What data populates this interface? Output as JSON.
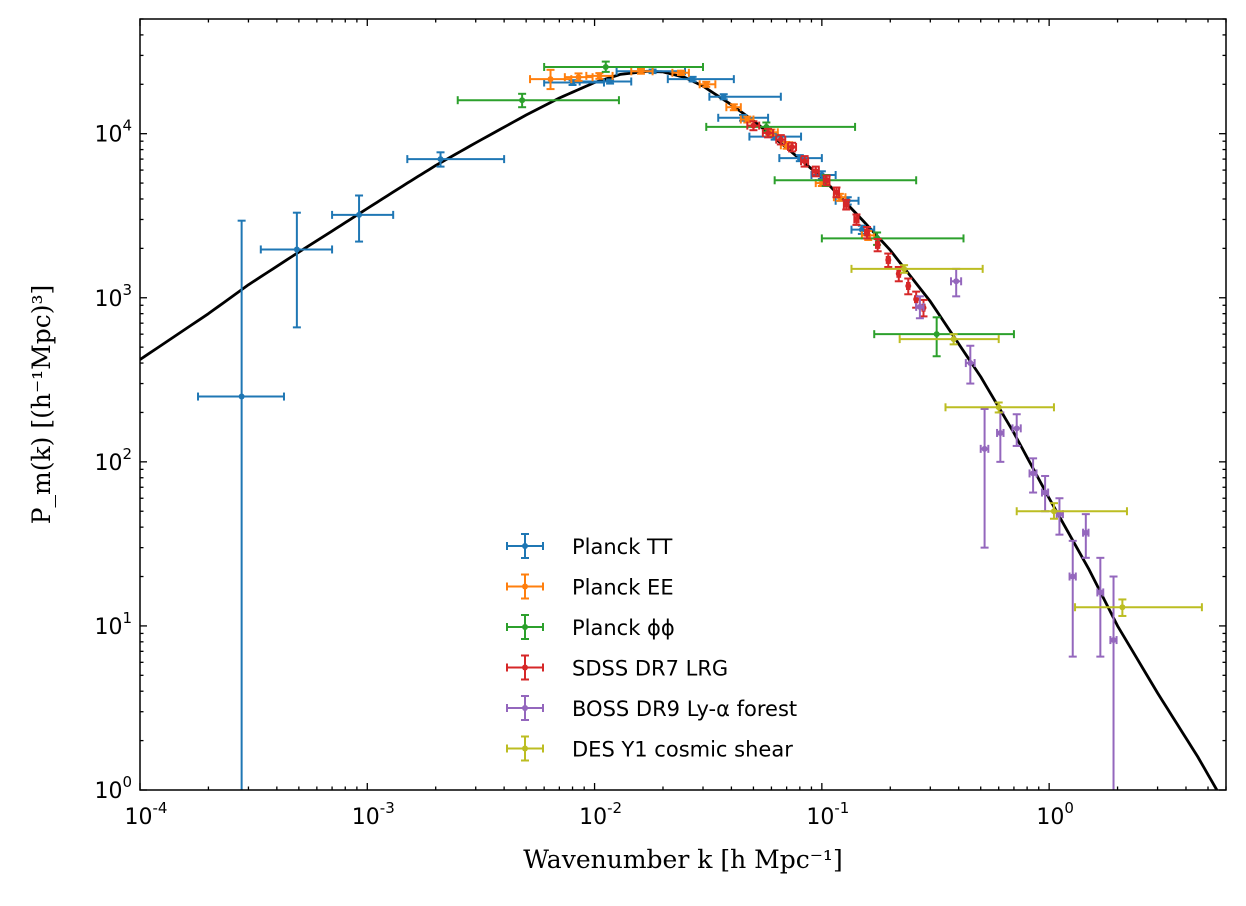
{
  "chart_data": {
    "type": "scatter",
    "title": "",
    "xlabel": "Wavenumber k [h Mpc⁻¹]",
    "ylabel": "P_m(k) [(h⁻¹Mpc)³]",
    "xscale": "log",
    "yscale": "log",
    "xlim": [
      0.0001,
      6.0
    ],
    "ylim": [
      1,
      50000
    ],
    "x_ticks": [
      {
        "value": 0.0001,
        "base": "10",
        "exp": "-4"
      },
      {
        "value": 0.001,
        "base": "10",
        "exp": "-3"
      },
      {
        "value": 0.01,
        "base": "10",
        "exp": "-2"
      },
      {
        "value": 0.1,
        "base": "10",
        "exp": "-1"
      },
      {
        "value": 1,
        "base": "10",
        "exp": "0"
      }
    ],
    "y_ticks": [
      {
        "value": 1,
        "base": "10",
        "exp": "0"
      },
      {
        "value": 10,
        "base": "10",
        "exp": "1"
      },
      {
        "value": 100,
        "base": "10",
        "exp": "2"
      },
      {
        "value": 1000,
        "base": "10",
        "exp": "3"
      },
      {
        "value": 10000,
        "base": "10",
        "exp": "4"
      }
    ],
    "grid": false,
    "legend_position": "bottom-center",
    "model_curve": {
      "color": "#000000",
      "points": [
        [
          0.0001,
          420
        ],
        [
          0.0002,
          800
        ],
        [
          0.0003,
          1200
        ],
        [
          0.0005,
          1900
        ],
        [
          0.0007,
          2550
        ],
        [
          0.001,
          3500
        ],
        [
          0.0015,
          5000
        ],
        [
          0.002,
          6400
        ],
        [
          0.003,
          8800
        ],
        [
          0.005,
          13000
        ],
        [
          0.007,
          16500
        ],
        [
          0.01,
          20500
        ],
        [
          0.013,
          23000
        ],
        [
          0.017,
          24000
        ],
        [
          0.02,
          23800
        ],
        [
          0.025,
          22000
        ],
        [
          0.03,
          19500
        ],
        [
          0.04,
          15000
        ],
        [
          0.05,
          12000
        ],
        [
          0.07,
          8200
        ],
        [
          0.1,
          5400
        ],
        [
          0.15,
          3000
        ],
        [
          0.2,
          1950
        ],
        [
          0.3,
          950
        ],
        [
          0.5,
          330
        ],
        [
          0.7,
          150
        ],
        [
          1.0,
          60
        ],
        [
          1.5,
          22
        ],
        [
          2.0,
          10
        ],
        [
          3.0,
          3.9
        ],
        [
          4.5,
          1.6
        ],
        [
          6.0,
          0.8
        ]
      ]
    },
    "series": [
      {
        "name": "Planck TT",
        "color": "#1f77b4",
        "points": [
          {
            "x": 0.00028,
            "y": 250,
            "xlo": 0.00018,
            "xhi": 0.00043,
            "ylo": 0.5,
            "yhi": 2950
          },
          {
            "x": 0.00049,
            "y": 1970,
            "xlo": 0.00034,
            "xhi": 0.0007,
            "ylo": 660,
            "yhi": 3300
          },
          {
            "x": 0.00092,
            "y": 3200,
            "xlo": 0.0007,
            "xhi": 0.0013,
            "ylo": 2200,
            "yhi": 4200
          },
          {
            "x": 0.0021,
            "y": 7000,
            "xlo": 0.0015,
            "xhi": 0.004,
            "ylo": 6300,
            "yhi": 7700
          },
          {
            "x": 0.008,
            "y": 20500,
            "xlo": 0.006,
            "xhi": 0.011,
            "ylo": 19800,
            "yhi": 21200
          },
          {
            "x": 0.0117,
            "y": 20800,
            "xlo": 0.0086,
            "xhi": 0.0145,
            "ylo": 20200,
            "yhi": 21400
          },
          {
            "x": 0.018,
            "y": 24000,
            "xlo": 0.0125,
            "xhi": 0.025,
            "ylo": 23400,
            "yhi": 24600
          },
          {
            "x": 0.027,
            "y": 21500,
            "xlo": 0.021,
            "xhi": 0.041,
            "ylo": 20800,
            "yhi": 22200
          },
          {
            "x": 0.037,
            "y": 16800,
            "xlo": 0.032,
            "xhi": 0.066,
            "ylo": 16200,
            "yhi": 17400
          },
          {
            "x": 0.045,
            "y": 12500,
            "xlo": 0.035,
            "xhi": 0.058,
            "ylo": 12000,
            "yhi": 13000
          },
          {
            "x": 0.062,
            "y": 9600,
            "xlo": 0.048,
            "xhi": 0.081,
            "ylo": 9200,
            "yhi": 10000
          },
          {
            "x": 0.08,
            "y": 7100,
            "xlo": 0.065,
            "xhi": 0.1,
            "ylo": 6800,
            "yhi": 7400
          },
          {
            "x": 0.1,
            "y": 5600,
            "xlo": 0.09,
            "xhi": 0.115,
            "ylo": 5300,
            "yhi": 5900
          },
          {
            "x": 0.13,
            "y": 3900,
            "xlo": 0.115,
            "xhi": 0.145,
            "ylo": 3700,
            "yhi": 4100
          },
          {
            "x": 0.15,
            "y": 2600,
            "xlo": 0.135,
            "xhi": 0.17,
            "ylo": 2450,
            "yhi": 2750
          }
        ]
      },
      {
        "name": "Planck EE",
        "color": "#ff7f0e",
        "points": [
          {
            "x": 0.0064,
            "y": 21500,
            "xlo": 0.0052,
            "xhi": 0.0079,
            "ylo": 18700,
            "yhi": 24500
          },
          {
            "x": 0.0085,
            "y": 22100,
            "xlo": 0.0074,
            "xhi": 0.0098,
            "ylo": 21000,
            "yhi": 23300
          },
          {
            "x": 0.0105,
            "y": 22500,
            "xlo": 0.0092,
            "xhi": 0.012,
            "ylo": 21600,
            "yhi": 23400
          },
          {
            "x": 0.016,
            "y": 24000,
            "xlo": 0.0145,
            "xhi": 0.018,
            "ylo": 23200,
            "yhi": 24800
          },
          {
            "x": 0.024,
            "y": 23500,
            "xlo": 0.022,
            "xhi": 0.026,
            "ylo": 22800,
            "yhi": 24200
          },
          {
            "x": 0.031,
            "y": 20000,
            "xlo": 0.029,
            "xhi": 0.034,
            "ylo": 19300,
            "yhi": 20700
          },
          {
            "x": 0.041,
            "y": 14500,
            "xlo": 0.038,
            "xhi": 0.044,
            "ylo": 13900,
            "yhi": 15100
          },
          {
            "x": 0.047,
            "y": 12200,
            "xlo": 0.044,
            "xhi": 0.05,
            "ylo": 11700,
            "yhi": 12700
          },
          {
            "x": 0.06,
            "y": 10200,
            "xlo": 0.057,
            "xhi": 0.064,
            "ylo": 9800,
            "yhi": 10600
          },
          {
            "x": 0.07,
            "y": 8500,
            "xlo": 0.066,
            "xhi": 0.074,
            "ylo": 8100,
            "yhi": 8900
          },
          {
            "x": 0.1,
            "y": 5000,
            "xlo": 0.094,
            "xhi": 0.106,
            "ylo": 4800,
            "yhi": 5200
          },
          {
            "x": 0.12,
            "y": 4100,
            "xlo": 0.113,
            "xhi": 0.127,
            "ylo": 3900,
            "yhi": 4300
          },
          {
            "x": 0.16,
            "y": 2400,
            "xlo": 0.15,
            "xhi": 0.17,
            "ylo": 2250,
            "yhi": 2550
          }
        ]
      },
      {
        "name": "Planck ϕϕ",
        "color": "#2ca02c",
        "points": [
          {
            "x": 0.0048,
            "y": 16000,
            "xlo": 0.0025,
            "xhi": 0.0128,
            "ylo": 14500,
            "yhi": 17500
          },
          {
            "x": 0.0112,
            "y": 25500,
            "xlo": 0.006,
            "xhi": 0.03,
            "ylo": 23800,
            "yhi": 27500
          },
          {
            "x": 0.057,
            "y": 11000,
            "xlo": 0.031,
            "xhi": 0.14,
            "ylo": 10300,
            "yhi": 11700
          },
          {
            "x": 0.104,
            "y": 5200,
            "xlo": 0.062,
            "xhi": 0.26,
            "ylo": 4800,
            "yhi": 5600
          },
          {
            "x": 0.175,
            "y": 2300,
            "xlo": 0.1,
            "xhi": 0.42,
            "ylo": 2100,
            "yhi": 2500
          },
          {
            "x": 0.32,
            "y": 600,
            "xlo": 0.17,
            "xhi": 0.7,
            "ylo": 440,
            "yhi": 760
          }
        ]
      },
      {
        "name": "SDSS DR7 LRG",
        "color": "#d62728",
        "points": [
          {
            "x": 0.05,
            "y": 11200,
            "xlo": 0.047,
            "xhi": 0.053,
            "ylo": 10500,
            "yhi": 11900
          },
          {
            "x": 0.058,
            "y": 10100,
            "xlo": 0.055,
            "xhi": 0.061,
            "ylo": 9500,
            "yhi": 10700
          },
          {
            "x": 0.066,
            "y": 9200,
            "xlo": 0.063,
            "xhi": 0.069,
            "ylo": 8600,
            "yhi": 9800
          },
          {
            "x": 0.074,
            "y": 8300,
            "xlo": 0.071,
            "xhi": 0.077,
            "ylo": 7800,
            "yhi": 8800
          },
          {
            "x": 0.084,
            "y": 6800,
            "xlo": 0.081,
            "xhi": 0.087,
            "ylo": 6300,
            "yhi": 7300
          },
          {
            "x": 0.094,
            "y": 5900,
            "xlo": 0.091,
            "xhi": 0.097,
            "ylo": 5500,
            "yhi": 6300
          },
          {
            "x": 0.105,
            "y": 5200,
            "xlo": 0.102,
            "xhi": 0.108,
            "ylo": 4850,
            "yhi": 5550
          },
          {
            "x": 0.116,
            "y": 4400,
            "xlo": 0.113,
            "xhi": 0.119,
            "ylo": 4100,
            "yhi": 4700
          },
          {
            "x": 0.128,
            "y": 3700,
            "xlo": 0.125,
            "xhi": 0.131,
            "ylo": 3450,
            "yhi": 3950
          },
          {
            "x": 0.142,
            "y": 3000,
            "xlo": 0.139,
            "xhi": 0.145,
            "ylo": 2780,
            "yhi": 3220
          },
          {
            "x": 0.158,
            "y": 2500,
            "xlo": 0.155,
            "xhi": 0.161,
            "ylo": 2300,
            "yhi": 2700
          },
          {
            "x": 0.176,
            "y": 2100,
            "xlo": 0.173,
            "xhi": 0.179,
            "ylo": 1920,
            "yhi": 2280
          },
          {
            "x": 0.196,
            "y": 1700,
            "xlo": 0.193,
            "xhi": 0.199,
            "ylo": 1540,
            "yhi": 1860
          },
          {
            "x": 0.218,
            "y": 1400,
            "xlo": 0.215,
            "xhi": 0.221,
            "ylo": 1260,
            "yhi": 1540
          },
          {
            "x": 0.24,
            "y": 1180,
            "xlo": 0.237,
            "xhi": 0.243,
            "ylo": 1050,
            "yhi": 1310
          },
          {
            "x": 0.26,
            "y": 980,
            "xlo": 0.257,
            "xhi": 0.263,
            "ylo": 870,
            "yhi": 1090
          },
          {
            "x": 0.28,
            "y": 870,
            "xlo": 0.277,
            "xhi": 0.283,
            "ylo": 770,
            "yhi": 970
          }
        ]
      },
      {
        "name": "BOSS DR9 Ly-α forest",
        "color": "#9467bd",
        "points": [
          {
            "x": 0.27,
            "y": 880,
            "xlo": 0.26,
            "xhi": 0.28,
            "ylo": 750,
            "yhi": 1020
          },
          {
            "x": 0.39,
            "y": 1260,
            "xlo": 0.37,
            "xhi": 0.41,
            "ylo": 1020,
            "yhi": 1500
          },
          {
            "x": 0.45,
            "y": 400,
            "xlo": 0.43,
            "xhi": 0.47,
            "ylo": 300,
            "yhi": 510
          },
          {
            "x": 0.52,
            "y": 120,
            "xlo": 0.5,
            "xhi": 0.54,
            "ylo": 30,
            "yhi": 210
          },
          {
            "x": 0.61,
            "y": 150,
            "xlo": 0.59,
            "xhi": 0.63,
            "ylo": 100,
            "yhi": 200
          },
          {
            "x": 0.72,
            "y": 160,
            "xlo": 0.69,
            "xhi": 0.75,
            "ylo": 125,
            "yhi": 195
          },
          {
            "x": 0.85,
            "y": 85,
            "xlo": 0.82,
            "xhi": 0.88,
            "ylo": 65,
            "yhi": 105
          },
          {
            "x": 0.96,
            "y": 65,
            "xlo": 0.93,
            "xhi": 0.99,
            "ylo": 50,
            "yhi": 82
          },
          {
            "x": 1.11,
            "y": 48,
            "xlo": 1.08,
            "xhi": 1.15,
            "ylo": 36,
            "yhi": 60
          },
          {
            "x": 1.27,
            "y": 20,
            "xlo": 1.23,
            "xhi": 1.31,
            "ylo": 6.5,
            "yhi": 33
          },
          {
            "x": 1.45,
            "y": 37,
            "xlo": 1.41,
            "xhi": 1.49,
            "ylo": 26,
            "yhi": 48
          },
          {
            "x": 1.68,
            "y": 16,
            "xlo": 1.63,
            "xhi": 1.73,
            "ylo": 6.5,
            "yhi": 26
          },
          {
            "x": 1.92,
            "y": 8.2,
            "xlo": 1.86,
            "xhi": 1.98,
            "ylo": 0.5,
            "yhi": 20
          }
        ]
      },
      {
        "name": "DES Y1 cosmic shear",
        "color": "#bcbd22",
        "points": [
          {
            "x": 0.23,
            "y": 1500,
            "xlo": 0.135,
            "xhi": 0.51,
            "ylo": 1420,
            "yhi": 1580
          },
          {
            "x": 0.38,
            "y": 560,
            "xlo": 0.22,
            "xhi": 0.6,
            "ylo": 520,
            "yhi": 600
          },
          {
            "x": 0.6,
            "y": 215,
            "xlo": 0.35,
            "xhi": 1.05,
            "ylo": 200,
            "yhi": 230
          },
          {
            "x": 1.05,
            "y": 50,
            "xlo": 0.72,
            "xhi": 2.2,
            "ylo": 45,
            "yhi": 56
          },
          {
            "x": 2.1,
            "y": 13,
            "xlo": 1.3,
            "xhi": 4.7,
            "ylo": 11.5,
            "yhi": 14.5
          }
        ]
      }
    ]
  }
}
